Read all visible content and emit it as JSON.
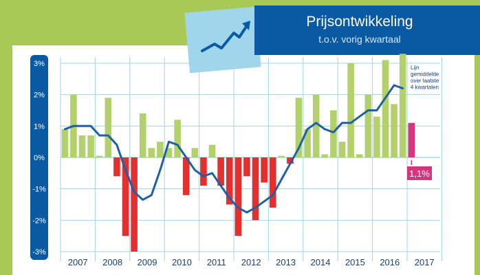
{
  "header": {
    "title": "Prijsontwikkeling",
    "subtitle": "t.o.v. vorig kwartaal"
  },
  "chart_data": {
    "type": "bar",
    "title": "Prijsontwikkeling",
    "subtitle": "t.o.v. vorig kwartaal",
    "ylim": [
      -3.2,
      3.2
    ],
    "y_ticks": [
      3,
      2,
      1,
      0,
      -1,
      -2,
      -3
    ],
    "y_tick_labels": [
      "3%",
      "2%",
      "1%",
      "0%",
      "-1%",
      "-2%",
      "-3%"
    ],
    "x_tick_labels": [
      "2007",
      "2008",
      "2009",
      "2010",
      "2011",
      "2012",
      "2013",
      "2014",
      "2015",
      "2016",
      "2017"
    ],
    "grid": true,
    "series": [
      {
        "kind": "bars",
        "unit": "% per kwartaal",
        "values": [
          0.9,
          2.0,
          0.7,
          0.7,
          0.05,
          1.9,
          -0.6,
          -2.5,
          -3.0,
          1.4,
          0.3,
          0.5,
          0.3,
          1.2,
          -1.2,
          0.3,
          -0.9,
          0.4,
          -0.9,
          -1.5,
          -2.5,
          -0.6,
          -2.0,
          -0.8,
          -1.6,
          0.05,
          -0.2,
          1.9,
          0.9,
          2.0,
          0.1,
          1.5,
          0.5,
          3.0,
          0.1,
          2.0,
          1.3,
          3.1,
          1.7,
          3.3
        ],
        "positive_color": "#b2d06b",
        "negative_color": "#e2302f"
      },
      {
        "kind": "bars",
        "unit": "% per kwartaal",
        "values": [
          null,
          null,
          null,
          null,
          null,
          null,
          null,
          null,
          null,
          null,
          null,
          null,
          null,
          null,
          null,
          null,
          null,
          null,
          null,
          null,
          null,
          null,
          null,
          null,
          null,
          null,
          null,
          null,
          null,
          null,
          null,
          null,
          null,
          null,
          null,
          null,
          null,
          null,
          null,
          null,
          1.1
        ],
        "color": "#d4357d"
      },
      {
        "kind": "line",
        "name": "Lijn gemiddelde over laatste 4 kwartalen",
        "values": [
          0.9,
          1.0,
          1.0,
          1.0,
          0.7,
          0.7,
          0.4,
          -0.4,
          -1.1,
          -1.35,
          -1.2,
          -0.4,
          0.5,
          0.4,
          0.0,
          -0.4,
          -0.6,
          -0.5,
          -0.9,
          -1.3,
          -1.6,
          -1.75,
          -1.6,
          -1.4,
          -1.2,
          -0.7,
          -0.2,
          0.3,
          0.9,
          1.1,
          0.9,
          0.8,
          1.1,
          1.1,
          1.3,
          1.5,
          1.5,
          1.9,
          2.3,
          2.2
        ],
        "color": "#1f5fa6"
      }
    ],
    "annotations": [
      {
        "text": "Lijn gemiddelde over laatste 4 kwartalen",
        "lines": [
          "Lijn",
          "gemiddelde",
          "over laatste",
          "4 kwartalen"
        ]
      },
      {
        "text": "1,1%"
      }
    ]
  },
  "colors": {
    "background": "#a9c957",
    "header": "#0a5aa3",
    "axis_badge": "#0a5aa3",
    "grid": "#9fd6ec",
    "trend_box": "#9fd6ec",
    "trend_icon": "#0a5aa3"
  },
  "icons": {
    "trend": "rising-trend-arrow-icon"
  }
}
